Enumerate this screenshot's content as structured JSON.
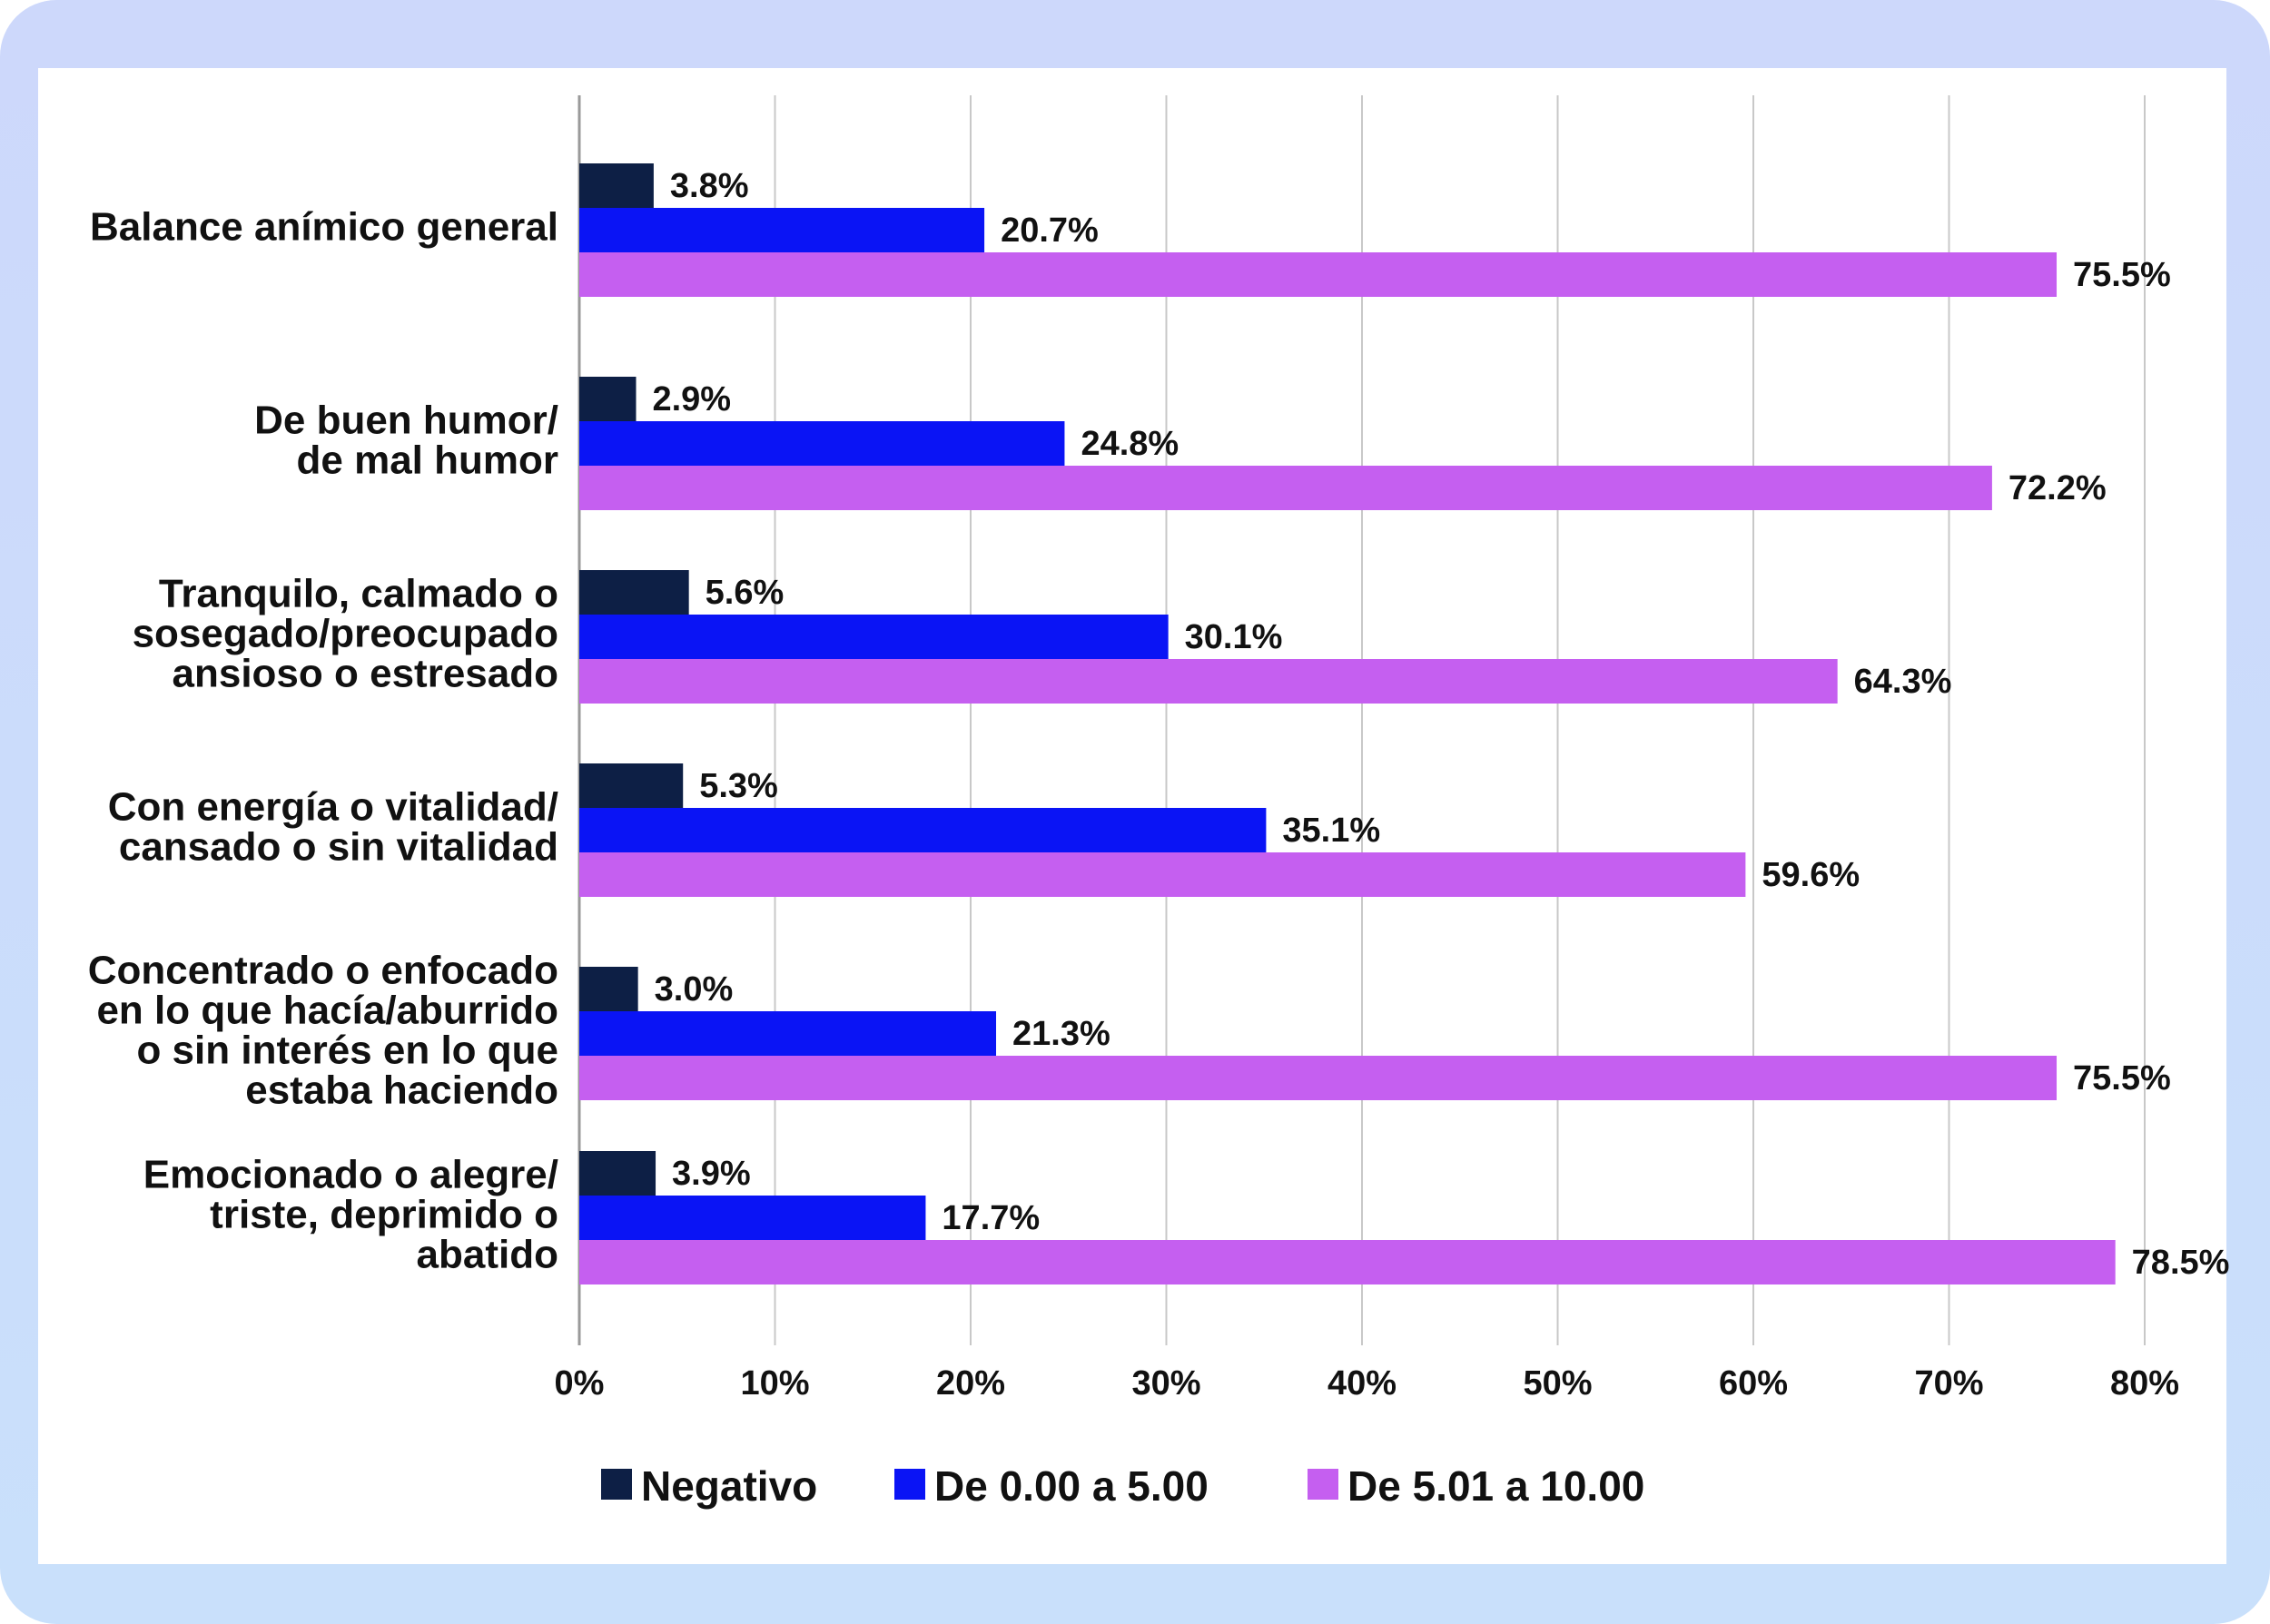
{
  "chart_data": {
    "type": "bar",
    "orientation": "horizontal",
    "title": "",
    "xlabel": "",
    "ylabel": "",
    "xlim": [
      0,
      80
    ],
    "tick_labels": [
      "0%",
      "10%",
      "20%",
      "30%",
      "40%",
      "50%",
      "60%",
      "70%",
      "80%"
    ],
    "grid": true,
    "legend_position": "bottom",
    "categories": [
      [
        "Balance anímico general"
      ],
      [
        "De buen humor/",
        "de mal humor"
      ],
      [
        "Tranquilo, calmado o",
        "sosegado/preocupado",
        "ansioso o estresado"
      ],
      [
        "Con energía o vitalidad/",
        "cansado o sin vitalidad"
      ],
      [
        "Concentrado o enfocado",
        "en lo que hacía/aburrido",
        "o sin interés en lo que",
        "estaba haciendo"
      ],
      [
        "Emocionado o alegre/",
        "triste, deprimido o",
        "abatido"
      ]
    ],
    "series": [
      {
        "name": "Negativo",
        "color": "#0d1f45",
        "values": [
          3.8,
          2.9,
          5.6,
          5.3,
          3.0,
          3.9
        ],
        "labels": [
          "3.8%",
          "2.9%",
          "5.6%",
          "5.3%",
          "3.0%",
          "3.9%"
        ]
      },
      {
        "name": "De 0.00 a 5.00",
        "color": "#0a14f5",
        "values": [
          20.7,
          24.8,
          30.1,
          35.1,
          21.3,
          17.7
        ],
        "labels": [
          "20.7%",
          "24.8%",
          "30.1%",
          "35.1%",
          "21.3%",
          "17.7%"
        ]
      },
      {
        "name": "De 5.01 a 10.00",
        "color": "#c55ff0",
        "values": [
          75.5,
          72.2,
          64.3,
          59.6,
          75.5,
          78.5
        ],
        "labels": [
          "75.5%",
          "72.2%",
          "64.3%",
          "59.6%",
          "75.5%",
          "78.5%"
        ]
      }
    ]
  }
}
